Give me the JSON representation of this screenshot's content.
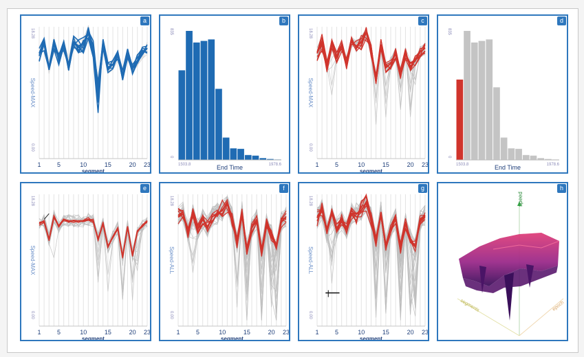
{
  "panels": [
    {
      "id": "a",
      "type": "parallel",
      "ylabel": "Speed-MAX",
      "ytop": "18.28",
      "ybottom": "0.00",
      "xlabel": "segment",
      "xticks": [
        "1",
        "5",
        "10",
        "15",
        "20",
        "23"
      ],
      "mode": "blue"
    },
    {
      "id": "b",
      "type": "hist",
      "xlabel": "End Time",
      "xmin": "1503.8",
      "xmax": "1978.6",
      "ytop": "835",
      "ybottom": "0",
      "values": [
        580,
        835,
        760,
        770,
        780,
        460,
        145,
        75,
        72,
        32,
        28,
        12,
        6,
        3
      ],
      "colors": "blue"
    },
    {
      "id": "c",
      "type": "parallel",
      "ylabel": "Speed-MAX",
      "ytop": "18.28",
      "ybottom": "0.00",
      "xlabel": "segment",
      "xticks": [
        "1",
        "5",
        "10",
        "15",
        "20",
        "23"
      ],
      "mode": "red-gray"
    },
    {
      "id": "d",
      "type": "hist",
      "xlabel": "End Time",
      "xmin": "1503.8",
      "xmax": "1978.6",
      "ytop": "835",
      "ybottom": "0",
      "values": [
        520,
        835,
        760,
        770,
        780,
        470,
        145,
        75,
        72,
        32,
        28,
        12,
        6,
        3
      ],
      "colors": "red-first"
    },
    {
      "id": "e",
      "type": "parallel",
      "ylabel": "Speed-MAX",
      "ytop": "18.28",
      "ybottom": "0.00",
      "xlabel": "segment",
      "xticks": [
        "1",
        "5",
        "10",
        "15",
        "20",
        "23"
      ],
      "mode": "red-thin"
    },
    {
      "id": "f",
      "type": "parallel",
      "ylabel": "Speed-ALL",
      "ytop": "18.28",
      "ybottom": "0.00",
      "xlabel": "segment",
      "xticks": [
        "1",
        "5",
        "10",
        "15",
        "20",
        "23"
      ],
      "mode": "red-all"
    },
    {
      "id": "g",
      "type": "parallel",
      "ylabel": "Speed-ALL",
      "ytop": "18.28",
      "ybottom": "0.00",
      "xlabel": "segment",
      "xticks": [
        "1",
        "5",
        "10",
        "15",
        "20",
        "23"
      ],
      "mode": "red-all-brush"
    },
    {
      "id": "h",
      "type": "surface3d",
      "axis_labels": [
        "speed",
        "segments",
        "epoch"
      ]
    }
  ],
  "chart_data": [
    {
      "type": "line",
      "panel": "a",
      "xlabel": "segment",
      "ylabel": "Speed-MAX",
      "ylim": [
        0,
        18.28
      ],
      "x": [
        1,
        2,
        3,
        4,
        5,
        6,
        7,
        8,
        9,
        10,
        11,
        12,
        13,
        14,
        15,
        16,
        17,
        18,
        19,
        20,
        21,
        22,
        23
      ],
      "series": [
        {
          "values": [
            14.6,
            16.2,
            12.6,
            15.8,
            13.8,
            15.6,
            13.0,
            16.2,
            15.6,
            16.0,
            17.5,
            15.0,
            10.5,
            16.0,
            12.5,
            13.0,
            14.5,
            11.6,
            14.5,
            12.5,
            13.6,
            14.8,
            15.3
          ]
        }
      ]
    },
    {
      "type": "bar",
      "panel": "b",
      "xlabel": "End Time",
      "xlim": [
        1503.8,
        1978.6
      ],
      "values": [
        580,
        835,
        760,
        770,
        780,
        460,
        145,
        75,
        72,
        32,
        28,
        12,
        6,
        3
      ]
    },
    {
      "type": "line",
      "panel": "c",
      "xlabel": "segment",
      "ylabel": "Speed-MAX",
      "ylim": [
        0,
        18.28
      ],
      "x": [
        1,
        2,
        3,
        4,
        5,
        6,
        7,
        8,
        9,
        10,
        11,
        12,
        13,
        14,
        15,
        16,
        17,
        18,
        19,
        20,
        21,
        22,
        23
      ],
      "series": [
        {
          "values": [
            14.6,
            16.2,
            12.8,
            15.8,
            14.0,
            15.6,
            13.2,
            16.2,
            15.6,
            16.2,
            17.5,
            15.0,
            11.0,
            15.8,
            12.6,
            13.2,
            14.5,
            11.8,
            14.5,
            12.8,
            13.6,
            14.8,
            15.3
          ]
        }
      ]
    },
    {
      "type": "bar",
      "panel": "d",
      "xlabel": "End Time",
      "xlim": [
        1503.8,
        1978.6
      ],
      "values": [
        520,
        835,
        760,
        770,
        780,
        470,
        145,
        75,
        72,
        32,
        28,
        12,
        6,
        3
      ]
    },
    {
      "type": "line",
      "panel": "e",
      "xlabel": "segment",
      "ylabel": "Speed-MAX",
      "ylim": [
        0,
        18.28
      ],
      "x": [
        1,
        2,
        3,
        4,
        5,
        6,
        7,
        8,
        9,
        10,
        11,
        12,
        13,
        14,
        15,
        16,
        17,
        18,
        19,
        20,
        21,
        22,
        23
      ],
      "series": [
        {
          "values": [
            14.2,
            14.6,
            12.0,
            15.2,
            13.8,
            14.8,
            14.6,
            14.6,
            14.6,
            14.6,
            14.8,
            14.6,
            12.0,
            14.2,
            11.0,
            12.4,
            13.6,
            9.6,
            13.8,
            9.8,
            13.2,
            13.8,
            14.6
          ]
        }
      ]
    },
    {
      "type": "line",
      "panel": "f",
      "xlabel": "segment",
      "ylabel": "Speed-ALL",
      "ylim": [
        0,
        18.28
      ],
      "x": [
        1,
        2,
        3,
        4,
        5,
        6,
        7,
        8,
        9,
        10,
        11,
        12,
        13,
        14,
        15,
        16,
        17,
        18,
        19,
        20,
        21,
        22,
        23
      ],
      "series": [
        {
          "values": [
            15.2,
            15.8,
            13.0,
            15.6,
            13.5,
            14.8,
            13.8,
            15.2,
            15.6,
            16.0,
            17.2,
            15.0,
            11.5,
            15.8,
            10.6,
            13.6,
            14.8,
            10.2,
            14.2,
            12.6,
            10.8,
            14.4,
            15.2
          ]
        }
      ]
    },
    {
      "type": "line",
      "panel": "g",
      "xlabel": "segment",
      "ylabel": "Speed-ALL",
      "ylim": [
        0,
        18.28
      ],
      "x": [
        1,
        2,
        3,
        4,
        5,
        6,
        7,
        8,
        9,
        10,
        11,
        12,
        13,
        14,
        15,
        16,
        17,
        18,
        19,
        20,
        21,
        22,
        23
      ],
      "series": [
        {
          "values": [
            15.0,
            16.2,
            13.0,
            15.6,
            13.5,
            14.8,
            13.6,
            15.6,
            15.6,
            16.0,
            17.2,
            15.0,
            11.8,
            15.8,
            11.2,
            13.4,
            14.8,
            10.8,
            14.2,
            12.2,
            11.0,
            14.6,
            15.3
          ]
        }
      ]
    }
  ]
}
